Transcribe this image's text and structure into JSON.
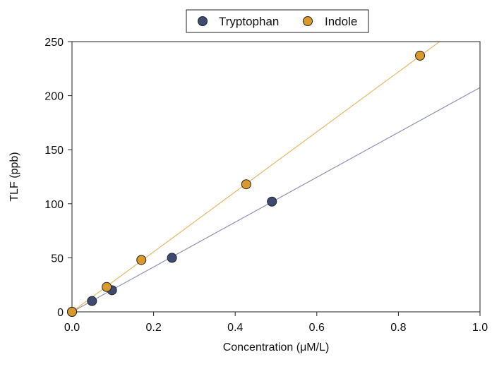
{
  "chart_data": {
    "type": "scatter",
    "xlabel": "Concentration (μM/L)",
    "ylabel": "TLF (ppb)",
    "xlim": [
      0,
      1.0
    ],
    "ylim": [
      0,
      250
    ],
    "x_ticks": [
      "0.0",
      "0.2",
      "0.4",
      "0.6",
      "0.8",
      "1.0"
    ],
    "y_ticks": [
      "0",
      "50",
      "100",
      "150",
      "200",
      "250"
    ],
    "grid": false,
    "legend_position": "top-center",
    "series": [
      {
        "name": "Tryptophan",
        "color": "#3d4b73",
        "line_color": "#8e93b4",
        "points": [
          {
            "x": 0.0,
            "y": 0
          },
          {
            "x": 0.049,
            "y": 10
          },
          {
            "x": 0.098,
            "y": 20
          },
          {
            "x": 0.245,
            "y": 50
          },
          {
            "x": 0.49,
            "y": 102
          }
        ],
        "fit": {
          "slope": 207.5,
          "intercept": 0
        }
      },
      {
        "name": "Indole",
        "color": "#d99a2b",
        "line_color": "#e8b866",
        "points": [
          {
            "x": 0.0,
            "y": 0
          },
          {
            "x": 0.085,
            "y": 23
          },
          {
            "x": 0.17,
            "y": 48
          },
          {
            "x": 0.427,
            "y": 118
          },
          {
            "x": 0.853,
            "y": 237
          }
        ],
        "fit": {
          "slope": 277.5,
          "intercept": 0
        }
      }
    ]
  }
}
